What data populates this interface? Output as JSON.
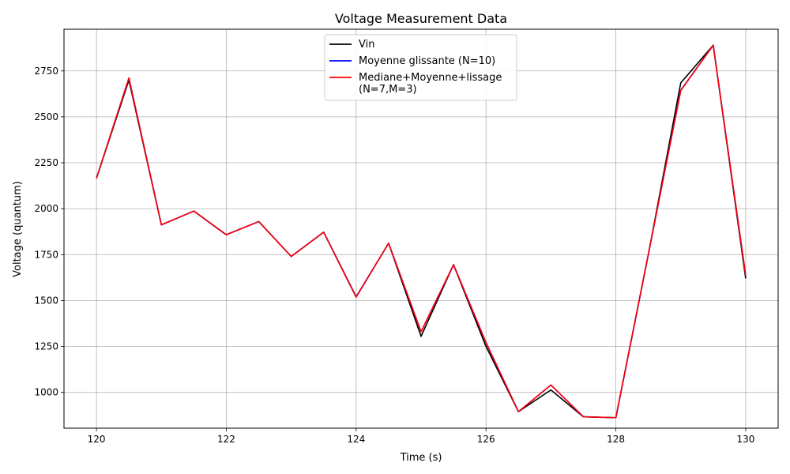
{
  "chart_data": {
    "type": "line",
    "title": "Voltage Measurement Data",
    "xlabel": "Time (s)",
    "ylabel": "Voltage (quantum)",
    "xlim": [
      119.5,
      130.5
    ],
    "ylim": [
      805,
      2977
    ],
    "x_ticks": [
      120,
      122,
      124,
      126,
      128,
      130
    ],
    "y_ticks": [
      1000,
      1250,
      1500,
      1750,
      2000,
      2250,
      2500,
      2750
    ],
    "grid": true,
    "legend_position": "top-center",
    "x": [
      120,
      120.5,
      121,
      121.5,
      122,
      122.5,
      123,
      123.5,
      124,
      124.5,
      125,
      125.5,
      126,
      126.5,
      127,
      127.5,
      128,
      128.5,
      129,
      129.5,
      130
    ],
    "series": [
      {
        "name": "Vin",
        "color": "#000000",
        "values": [
          2165,
          2700,
          1912,
          1987,
          1858,
          1930,
          1740,
          1872,
          1520,
          1812,
          1305,
          1695,
          1250,
          895,
          1013,
          867,
          862,
          1750,
          2685,
          2890,
          1620
        ]
      },
      {
        "name": "Moyenne glissante (N=10)",
        "color": "#0000ff",
        "values": [
          2165,
          2710,
          1912,
          1987,
          1858,
          1930,
          1740,
          1872,
          1520,
          1812,
          1330,
          1695,
          1270,
          895,
          1040,
          867,
          862,
          1750,
          2645,
          2890,
          1635
        ]
      },
      {
        "name": "Mediane+Moyenne+lissage\n(N=7,M=3)",
        "color": "#ff0000",
        "values": [
          2165,
          2712,
          1912,
          1987,
          1858,
          1930,
          1740,
          1872,
          1518,
          1812,
          1330,
          1695,
          1272,
          895,
          1040,
          867,
          862,
          1752,
          2643,
          2890,
          1638
        ]
      }
    ]
  }
}
